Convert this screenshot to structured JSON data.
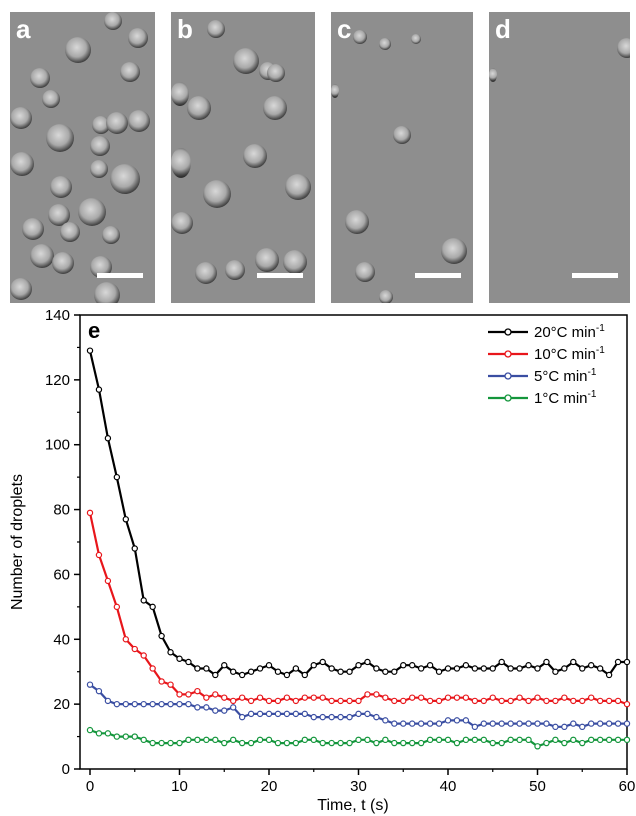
{
  "panels": [
    {
      "letter": "a"
    },
    {
      "letter": "b"
    },
    {
      "letter": "c"
    },
    {
      "letter": "d"
    }
  ],
  "chart_data": {
    "type": "line",
    "panel_letter": "e",
    "xlabel": "Time, t (s)",
    "ylabel": "Number of droplets",
    "xlim": [
      0,
      60
    ],
    "ylim": [
      0,
      140
    ],
    "xticks": [
      0,
      10,
      20,
      30,
      40,
      50,
      60
    ],
    "yticks": [
      0,
      20,
      40,
      60,
      80,
      100,
      120,
      140
    ],
    "legend_position": "top-right",
    "x": [
      0,
      1,
      2,
      3,
      4,
      5,
      6,
      7,
      8,
      9,
      10,
      11,
      12,
      13,
      14,
      15,
      16,
      17,
      18,
      19,
      20,
      21,
      22,
      23,
      24,
      25,
      26,
      27,
      28,
      29,
      30,
      31,
      32,
      33,
      34,
      35,
      36,
      37,
      38,
      39,
      40,
      41,
      42,
      43,
      44,
      45,
      46,
      47,
      48,
      49,
      50,
      51,
      52,
      53,
      54,
      55,
      56,
      57,
      58,
      59,
      60
    ],
    "series": [
      {
        "name": "20°C min",
        "unit_exp": "-1",
        "color": "#000000",
        "values": [
          129,
          117,
          102,
          90,
          77,
          68,
          52,
          50,
          41,
          36,
          34,
          33,
          31,
          31,
          29,
          32,
          30,
          29,
          30,
          31,
          32,
          30,
          29,
          31,
          29,
          32,
          33,
          31,
          30,
          30,
          32,
          33,
          31,
          30,
          30,
          32,
          32,
          31,
          32,
          30,
          31,
          31,
          32,
          31,
          31,
          31,
          33,
          31,
          31,
          32,
          31,
          33,
          30,
          31,
          33,
          31,
          32,
          31,
          29,
          33,
          33
        ]
      },
      {
        "name": "10°C min",
        "unit_exp": "-1",
        "color": "#e8161b",
        "values": [
          79,
          66,
          58,
          50,
          40,
          37,
          35,
          31,
          27,
          26,
          23,
          23,
          24,
          22,
          23,
          22,
          21,
          22,
          21,
          22,
          21,
          21,
          22,
          21,
          22,
          22,
          22,
          21,
          21,
          21,
          21,
          23,
          23,
          22,
          21,
          21,
          22,
          22,
          21,
          21,
          22,
          22,
          22,
          21,
          21,
          22,
          21,
          21,
          22,
          21,
          22,
          21,
          21,
          22,
          21,
          21,
          22,
          21,
          21,
          21,
          20
        ]
      },
      {
        "name": "5°C min",
        "unit_exp": "-1",
        "color": "#3a4ea2",
        "values": [
          26,
          24,
          21,
          20,
          20,
          20,
          20,
          20,
          20,
          20,
          20,
          20,
          19,
          19,
          18,
          18,
          19,
          16,
          17,
          17,
          17,
          17,
          17,
          17,
          17,
          16,
          16,
          16,
          16,
          16,
          17,
          17,
          16,
          15,
          14,
          14,
          14,
          14,
          14,
          14,
          15,
          15,
          15,
          13,
          14,
          14,
          14,
          14,
          14,
          14,
          14,
          14,
          13,
          13,
          14,
          13,
          14,
          14,
          14,
          14,
          14
        ]
      },
      {
        "name": "1°C min",
        "unit_exp": "-1",
        "color": "#14963c",
        "values": [
          12,
          11,
          11,
          10,
          10,
          10,
          9,
          8,
          8,
          8,
          8,
          9,
          9,
          9,
          9,
          8,
          9,
          8,
          8,
          9,
          9,
          8,
          8,
          8,
          9,
          9,
          8,
          8,
          8,
          8,
          9,
          9,
          8,
          9,
          8,
          8,
          8,
          8,
          9,
          9,
          9,
          8,
          9,
          9,
          9,
          8,
          8,
          9,
          9,
          9,
          7,
          8,
          9,
          8,
          9,
          8,
          9,
          9,
          9,
          9,
          9
        ]
      }
    ]
  }
}
